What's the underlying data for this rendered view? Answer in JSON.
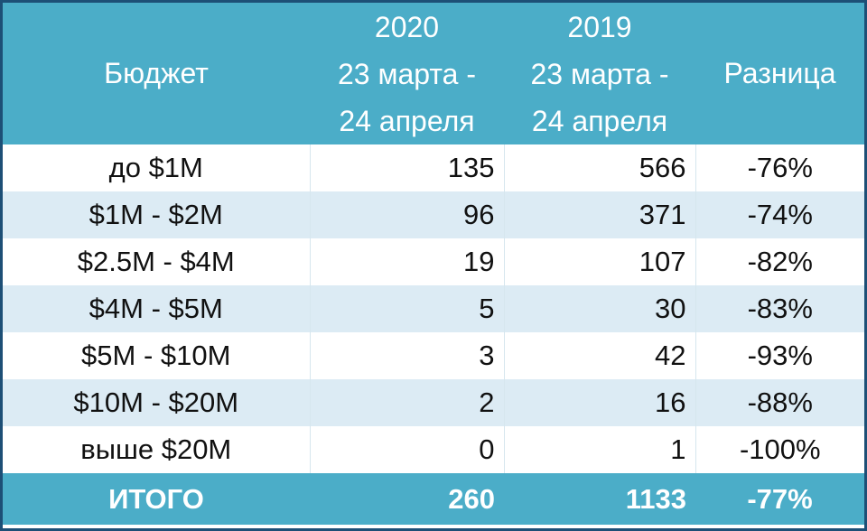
{
  "header": {
    "budget": "Бюджет",
    "col2020": {
      "year": "2020",
      "range1": "23 марта -",
      "range2": "24 апреля"
    },
    "col2019": {
      "year": "2019",
      "range1": "23 марта -",
      "range2": "24 апреля"
    },
    "diff": "Разница"
  },
  "rows": [
    {
      "budget": "до $1M",
      "v2020": "135",
      "v2019": "566",
      "diff": "-76%"
    },
    {
      "budget": "$1M - $2M",
      "v2020": "96",
      "v2019": "371",
      "diff": "-74%"
    },
    {
      "budget": "$2.5M - $4M",
      "v2020": "19",
      "v2019": "107",
      "diff": "-82%"
    },
    {
      "budget": "$4M - $5M",
      "v2020": "5",
      "v2019": "30",
      "diff": "-83%"
    },
    {
      "budget": "$5M - $10M",
      "v2020": "3",
      "v2019": "42",
      "diff": "-93%"
    },
    {
      "budget": "$10M - $20M",
      "v2020": "2",
      "v2019": "16",
      "diff": "-88%"
    },
    {
      "budget": "выше $20M",
      "v2020": "0",
      "v2019": "1",
      "diff": "-100%"
    }
  ],
  "total": {
    "label": "ИТОГО",
    "v2020": "260",
    "v2019": "1133",
    "diff": "-77%"
  },
  "colors": {
    "header_bg": "#4badc8",
    "stripe_bg": "#dcebf4",
    "border": "#1d4f76"
  }
}
